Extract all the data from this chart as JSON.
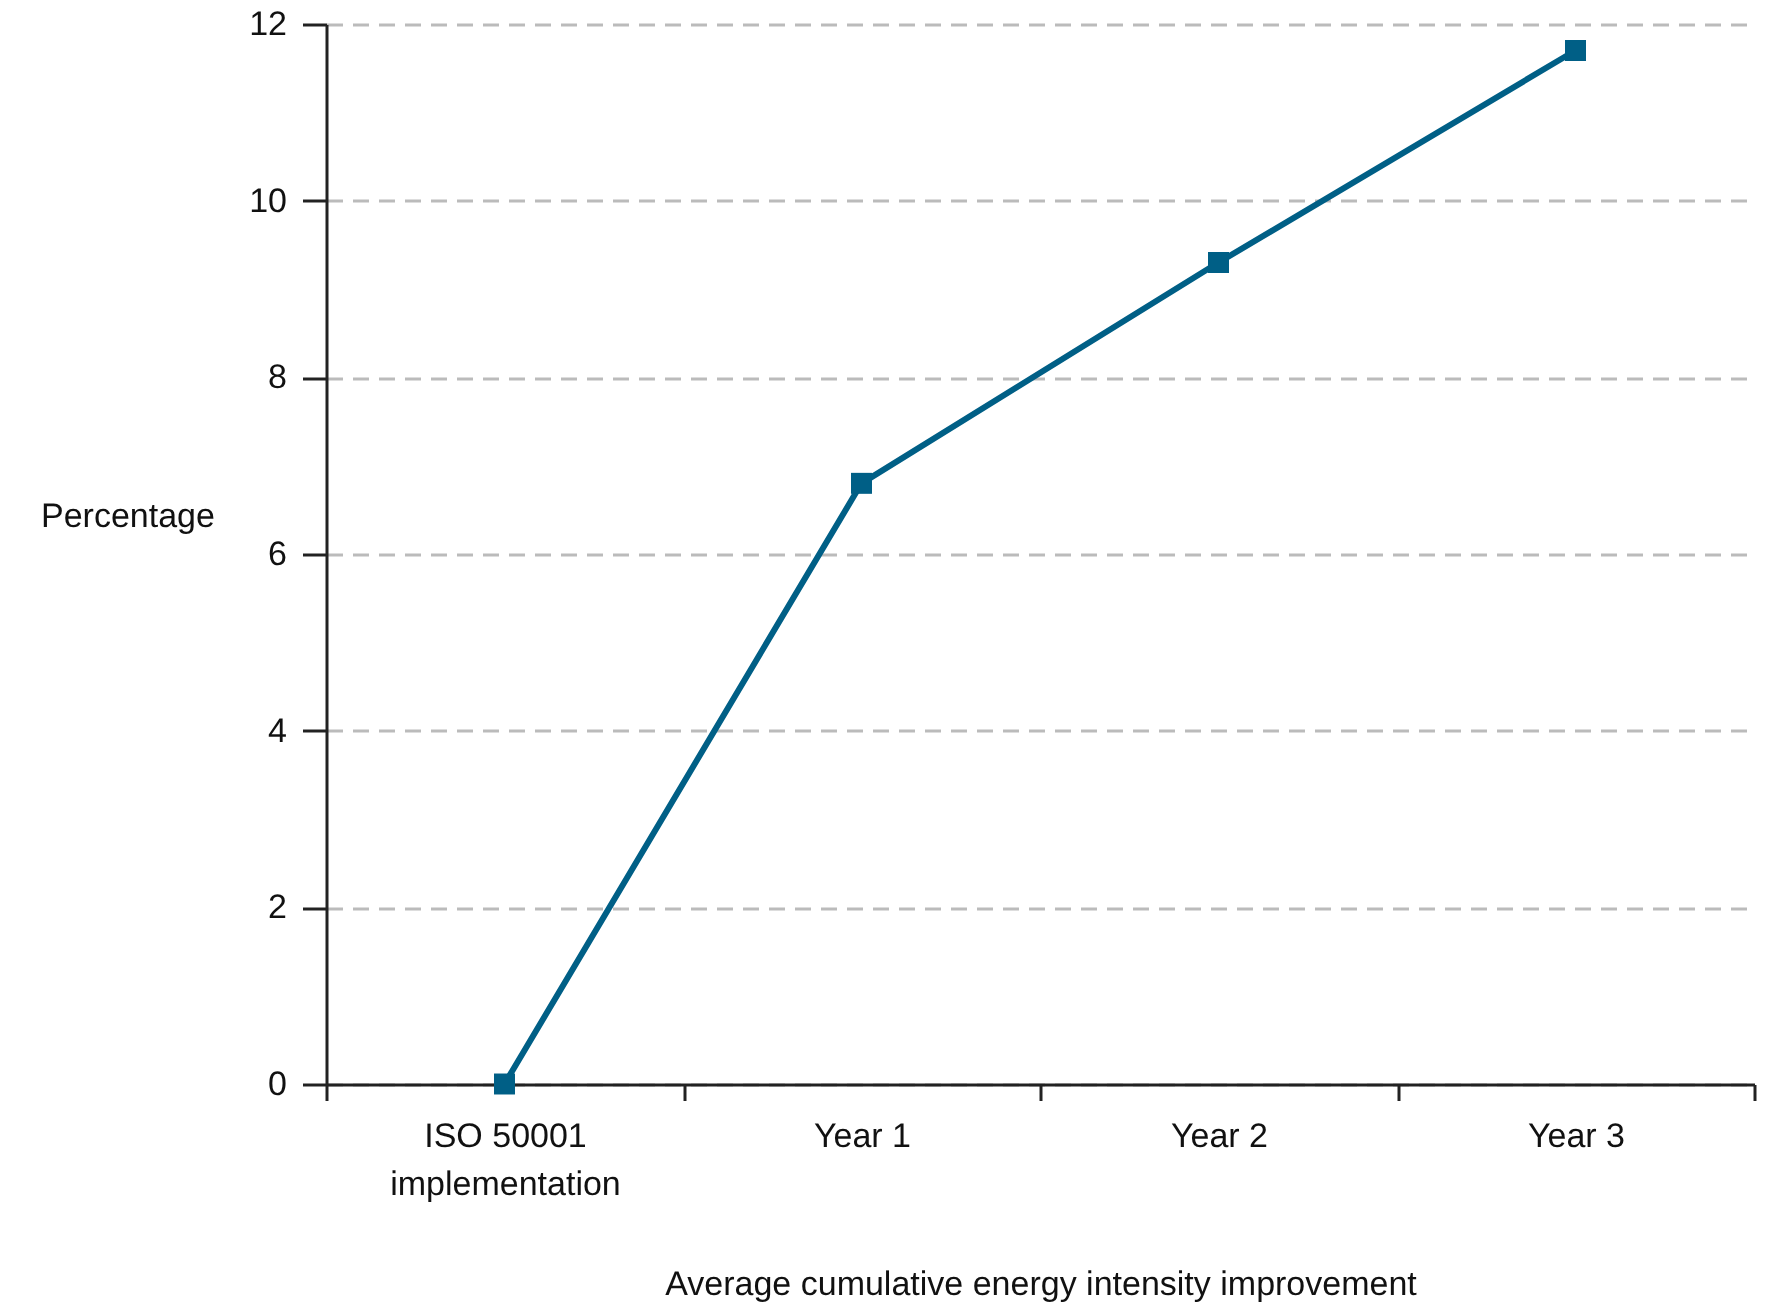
{
  "chart_data": {
    "type": "line",
    "xlabel": "Average cumulative energy intensity improvement",
    "ylabel": "Percentage",
    "categories": [
      "ISO 50001 implementation",
      "Year 1",
      "Year 2",
      "Year 3"
    ],
    "series": [
      {
        "color": "#005f86",
        "values": [
          0,
          6.8,
          9.3,
          11.7
        ]
      }
    ],
    "ylim": [
      0,
      12
    ],
    "yticks": [
      0,
      2,
      4,
      6,
      8,
      10,
      12
    ],
    "grid": "y",
    "marker": "square",
    "line_style": "solid"
  }
}
